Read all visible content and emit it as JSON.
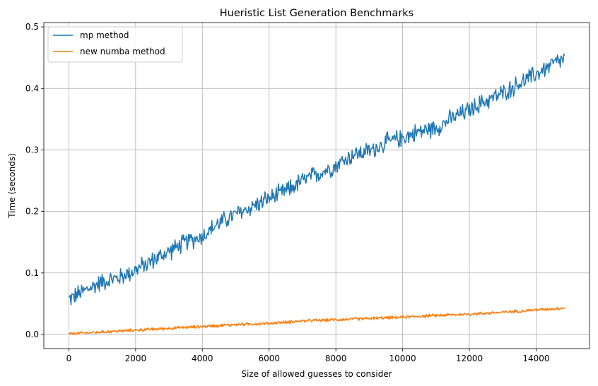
{
  "chart_data": {
    "type": "line",
    "title": "Hueristic List Generation Benchmarks",
    "xlabel": "Size of allowed guesses to consider",
    "ylabel": "Time (seconds)",
    "xlim": [
      -750,
      15600
    ],
    "ylim": [
      -0.023,
      0.507
    ],
    "xticks": [
      0,
      2000,
      4000,
      6000,
      8000,
      10000,
      12000,
      14000
    ],
    "xtick_labels": [
      "0",
      "2000",
      "4000",
      "6000",
      "8000",
      "10000",
      "12000",
      "14000"
    ],
    "yticks": [
      0.0,
      0.1,
      0.2,
      0.3,
      0.4,
      0.5
    ],
    "ytick_labels": [
      "0.0",
      "0.1",
      "0.2",
      "0.3",
      "0.4",
      "0.5"
    ],
    "grid": true,
    "legend_position": "top-left",
    "series": [
      {
        "name": "mp method",
        "color": "#1f77b4",
        "x": [
          0,
          500,
          1000,
          1500,
          2000,
          2500,
          3000,
          3500,
          4000,
          4500,
          5000,
          5500,
          6000,
          6500,
          7000,
          7500,
          8000,
          8500,
          9000,
          9500,
          10000,
          10500,
          11000,
          11500,
          12000,
          12500,
          13000,
          13500,
          14000,
          14500,
          14850
        ],
        "y": [
          0.057,
          0.072,
          0.086,
          0.092,
          0.105,
          0.12,
          0.135,
          0.15,
          0.16,
          0.181,
          0.195,
          0.208,
          0.221,
          0.233,
          0.25,
          0.262,
          0.275,
          0.292,
          0.298,
          0.312,
          0.32,
          0.33,
          0.336,
          0.352,
          0.365,
          0.38,
          0.392,
          0.408,
          0.423,
          0.44,
          0.448
        ],
        "noise": 0.018
      },
      {
        "name": "new numba method",
        "color": "#ff7f0e",
        "x": [
          0,
          1000,
          2000,
          3000,
          4000,
          5000,
          6000,
          7000,
          8000,
          9000,
          10000,
          11000,
          12000,
          13000,
          14000,
          14850
        ],
        "y": [
          0.001,
          0.004,
          0.007,
          0.01,
          0.013,
          0.016,
          0.018,
          0.022,
          0.024,
          0.026,
          0.028,
          0.031,
          0.033,
          0.036,
          0.04,
          0.043
        ],
        "noise": 0.003
      }
    ]
  }
}
